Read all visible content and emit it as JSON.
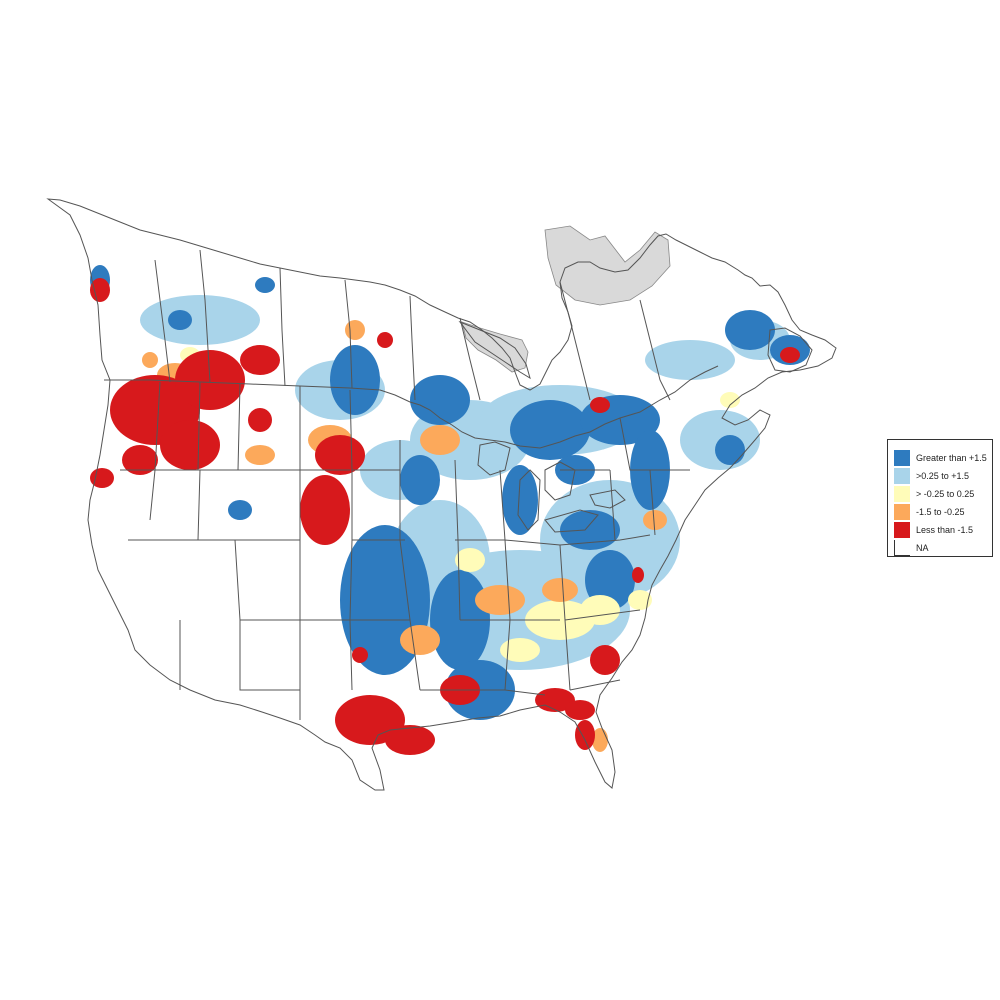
{
  "legend": {
    "items": [
      {
        "label": "Greater than +1.5",
        "color": "#2e7bbf"
      },
      {
        "label": ">0.25 to +1.5",
        "color": "#a9d4ea"
      },
      {
        "label": "> -0.25 to 0.25",
        "color": "#fffcb9"
      },
      {
        "label": "-1.5 to -0.25",
        "color": "#fca95b"
      },
      {
        "label": "Less than -1.5",
        "color": "#d7191c"
      },
      {
        "label": "NA",
        "color": "#ffffff"
      }
    ]
  },
  "map": {
    "boundary_color": "#555555",
    "no_data_region_color": "#d9d9d9"
  }
}
